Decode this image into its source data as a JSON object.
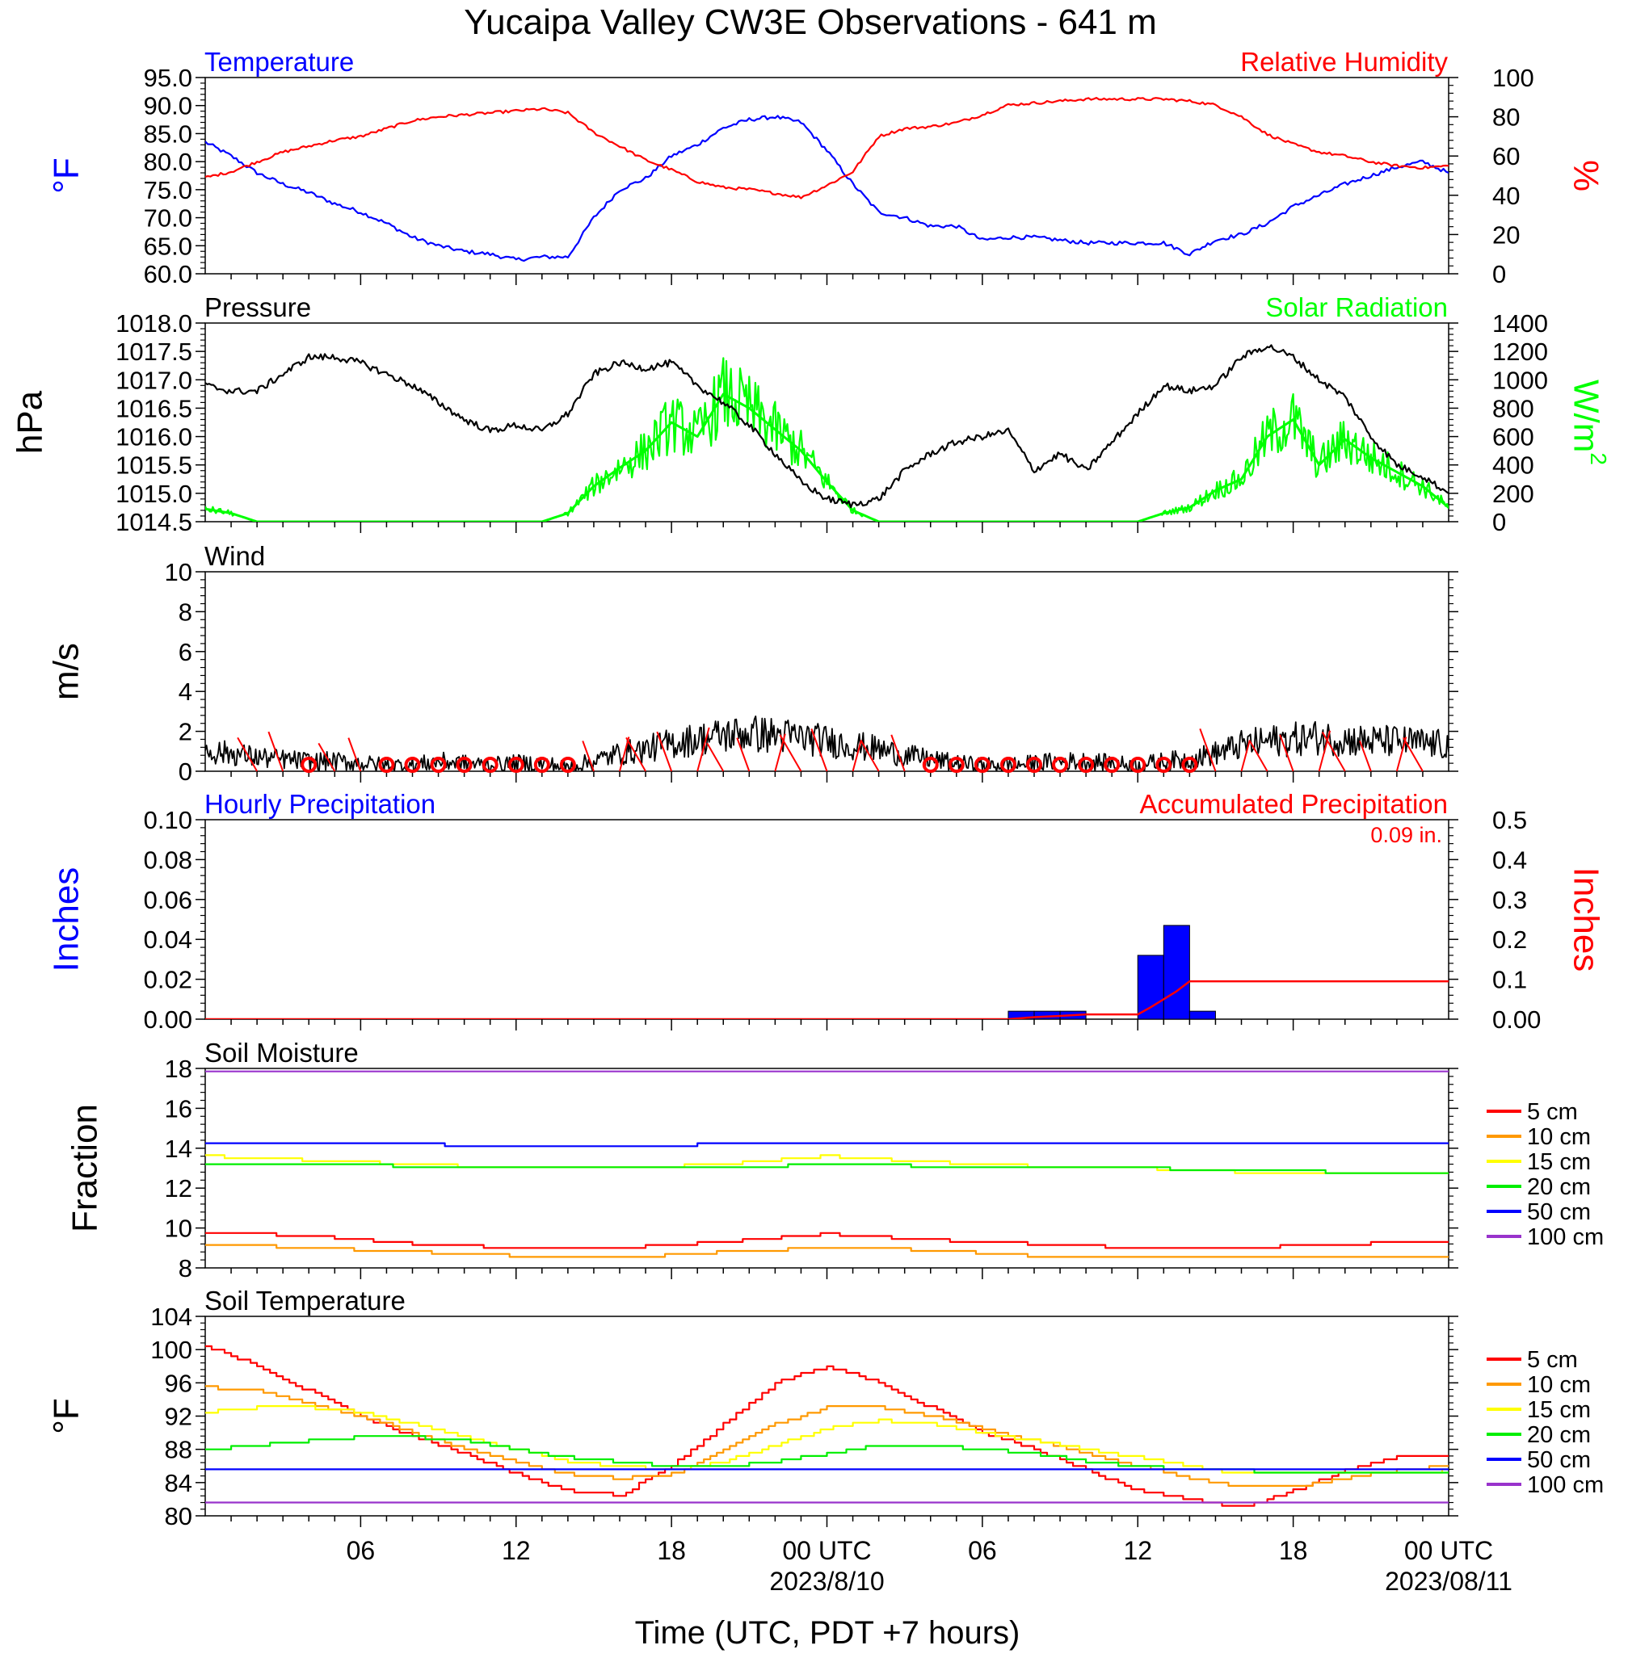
{
  "page_title": "Yucaipa Valley CW3E Observations - 641 m",
  "x_axis": {
    "title": "Time (UTC, PDT +7 hours)",
    "tick_labels": [
      "06",
      "12",
      "18",
      "00 UTC",
      "06",
      "12",
      "18",
      "00 UTC"
    ],
    "date_labels": [
      "2023/8/10",
      "2023/08/11"
    ]
  },
  "colors": {
    "temperature": "#0000ff",
    "humidity": "#ff0000",
    "pressure": "#000000",
    "solar": "#00ff00",
    "wind_barb": "#ff0000",
    "hourly_precip": "#0000ff",
    "accum_precip": "#ff0000",
    "depth_5cm": "#ff0000",
    "depth_10cm": "#ff9900",
    "depth_15cm": "#ffff00",
    "depth_20cm": "#00ee00",
    "depth_50cm": "#0000ff",
    "depth_100cm": "#9933cc"
  },
  "chart_data": [
    {
      "id": "temp-rh",
      "type": "line",
      "left_title": "Temperature",
      "right_title": "Relative Humidity",
      "ylabel_left": "°F",
      "ylabel_right": "%",
      "ylim_left": [
        60,
        95
      ],
      "ylim_right": [
        0,
        100
      ],
      "left_ticks": [
        "95.0",
        "90.0",
        "85.0",
        "80.0",
        "75.0",
        "70.0",
        "65.0",
        "60.0"
      ],
      "right_ticks": [
        "100",
        "80",
        "60",
        "40",
        "20",
        "0"
      ],
      "x_hours": [
        0,
        1,
        2,
        3,
        4,
        5,
        6,
        7,
        8,
        9,
        10,
        11,
        12,
        13,
        14,
        15,
        16,
        17,
        18,
        19,
        20,
        21,
        22,
        23,
        24,
        25,
        26,
        27,
        28,
        29,
        30,
        31,
        32,
        33,
        34,
        35,
        36,
        37,
        38,
        39,
        40,
        41,
        42,
        43,
        44,
        45,
        46,
        47,
        48
      ],
      "series": [
        {
          "name": "Temperature",
          "axis": "left",
          "values": [
            83.5,
            81,
            78,
            76,
            74.5,
            72.5,
            71,
            69,
            66.5,
            65,
            64,
            63.5,
            62.5,
            63,
            63,
            70,
            75,
            77,
            81,
            83,
            86,
            87.5,
            88,
            87,
            82,
            76,
            71,
            70,
            68.5,
            68.5,
            66,
            66.5,
            66.5,
            66,
            65.5,
            65.5,
            65.5,
            65.5,
            63.5,
            66,
            67,
            69,
            72,
            74,
            76,
            77.5,
            79,
            80,
            78
          ]
        },
        {
          "name": "Relative Humidity",
          "axis": "right",
          "values": [
            49,
            52,
            57,
            62,
            65,
            68,
            70,
            74,
            78,
            80,
            81,
            82,
            83,
            84,
            82,
            72,
            65,
            58,
            53,
            47,
            44,
            43,
            41,
            39,
            45,
            52,
            70,
            74,
            75,
            77,
            81,
            86,
            87,
            88,
            89,
            89,
            89,
            89,
            88,
            86,
            80,
            71,
            66,
            62,
            60,
            57,
            55,
            54,
            55
          ]
        }
      ]
    },
    {
      "id": "pressure-solar",
      "type": "line",
      "left_title": "Pressure",
      "right_title": "Solar Radiation",
      "ylabel_left": "hPa",
      "ylabel_right": "W/m",
      "ylabel_right_sup": "2",
      "ylim_left": [
        1014.5,
        1018
      ],
      "ylim_right": [
        0,
        1400
      ],
      "left_ticks": [
        "1018.0",
        "1017.5",
        "1017.0",
        "1016.5",
        "1016.0",
        "1015.5",
        "1015.0",
        "1014.5"
      ],
      "right_ticks": [
        "1400",
        "1200",
        "1000",
        "800",
        "600",
        "400",
        "200",
        "0"
      ],
      "x_hours": [
        0,
        1,
        2,
        3,
        4,
        5,
        6,
        7,
        8,
        9,
        10,
        11,
        12,
        13,
        14,
        15,
        16,
        17,
        18,
        19,
        20,
        21,
        22,
        23,
        24,
        25,
        26,
        27,
        28,
        29,
        30,
        31,
        32,
        33,
        34,
        35,
        36,
        37,
        38,
        39,
        40,
        41,
        42,
        43,
        44,
        45,
        46,
        47,
        48
      ],
      "series": [
        {
          "name": "Pressure",
          "axis": "left",
          "values": [
            1016.9,
            1016.8,
            1016.8,
            1017.1,
            1017.4,
            1017.4,
            1017.3,
            1017.1,
            1016.9,
            1016.6,
            1016.3,
            1016.1,
            1016.2,
            1016.1,
            1016.4,
            1017.1,
            1017.3,
            1017.2,
            1017.3,
            1016.9,
            1016.6,
            1016.2,
            1015.7,
            1015.2,
            1014.9,
            1014.8,
            1014.9,
            1015.4,
            1015.7,
            1015.9,
            1016.0,
            1016.1,
            1015.4,
            1015.7,
            1015.4,
            1015.9,
            1016.4,
            1016.9,
            1016.8,
            1016.9,
            1017.4,
            1017.6,
            1017.4,
            1017.0,
            1016.7,
            1016.0,
            1015.5,
            1015.3,
            1015.0
          ]
        },
        {
          "name": "Solar Radiation",
          "axis": "right",
          "values": [
            90,
            60,
            0,
            0,
            0,
            0,
            0,
            0,
            0,
            0,
            0,
            0,
            0,
            0,
            60,
            250,
            380,
            500,
            700,
            600,
            900,
            800,
            650,
            500,
            280,
            80,
            0,
            0,
            0,
            0,
            0,
            0,
            0,
            0,
            0,
            0,
            0,
            60,
            100,
            220,
            300,
            600,
            720,
            400,
            580,
            450,
            350,
            250,
            100
          ]
        }
      ]
    },
    {
      "id": "wind",
      "type": "line",
      "left_title": "Wind",
      "ylabel_left": "m/s",
      "ylim_left": [
        0,
        10
      ],
      "left_ticks": [
        "10",
        "8",
        "6",
        "4",
        "2",
        "0"
      ],
      "x_hours": [
        0,
        1,
        2,
        3,
        4,
        5,
        6,
        7,
        8,
        9,
        10,
        11,
        12,
        13,
        14,
        15,
        16,
        17,
        18,
        19,
        20,
        21,
        22,
        23,
        24,
        25,
        26,
        27,
        28,
        29,
        30,
        31,
        32,
        33,
        34,
        35,
        36,
        37,
        38,
        39,
        40,
        41,
        42,
        43,
        44,
        45,
        46,
        47,
        48
      ],
      "series": [
        {
          "name": "Wind Speed",
          "axis": "left",
          "values": [
            1.0,
            0.9,
            0.7,
            0.6,
            0.5,
            0.5,
            0.4,
            0.3,
            0.3,
            0.5,
            0.4,
            0.3,
            0.4,
            0.4,
            0.2,
            0.5,
            0.9,
            1.1,
            1.4,
            1.6,
            1.8,
            1.9,
            1.8,
            1.7,
            1.5,
            1.3,
            1.1,
            0.8,
            0.6,
            0.4,
            0.3,
            0.3,
            0.4,
            0.5,
            0.5,
            0.4,
            0.3,
            0.5,
            0.6,
            0.9,
            1.3,
            1.5,
            1.6,
            1.7,
            1.6,
            1.5,
            1.5,
            1.4,
            1.3
          ]
        }
      ],
      "barb_hours": [
        2,
        3,
        4,
        5,
        6,
        7,
        8,
        9,
        10,
        11,
        12,
        13,
        14,
        15,
        16,
        17,
        18,
        19,
        20,
        21,
        22,
        23,
        24,
        25,
        26,
        27,
        28,
        29,
        30,
        31,
        32,
        33,
        34,
        35,
        36,
        37,
        38,
        39,
        40,
        41,
        42,
        43,
        44,
        45,
        46,
        47
      ],
      "calm_hours": [
        4,
        7,
        8,
        9,
        10,
        11,
        12,
        13,
        14,
        28,
        29,
        30,
        31,
        32,
        33,
        34,
        35,
        36,
        37,
        38
      ]
    },
    {
      "id": "precip",
      "type": "bar",
      "left_title": "Hourly Precipitation",
      "right_title": "Accumulated Precipitation",
      "total_label": "0.09 in.",
      "ylabel_left": "Inches",
      "ylabel_right": "Inches",
      "ylim_left": [
        0,
        0.1
      ],
      "ylim_right": [
        0,
        0.5
      ],
      "left_ticks": [
        "0.10",
        "0.08",
        "0.06",
        "0.04",
        "0.02",
        "0.00"
      ],
      "right_ticks": [
        "0.5",
        "0.4",
        "0.3",
        "0.2",
        "0.1",
        "0.00"
      ],
      "hourly_bars": [
        {
          "start": 31,
          "end": 32,
          "value": 0.004
        },
        {
          "start": 32,
          "end": 33,
          "value": 0.004
        },
        {
          "start": 33,
          "end": 34,
          "value": 0.004
        },
        {
          "start": 36,
          "end": 37,
          "value": 0.032
        },
        {
          "start": 37,
          "end": 38,
          "value": 0.047
        },
        {
          "start": 38,
          "end": 39,
          "value": 0.004
        }
      ],
      "accum_x": [
        0,
        31,
        32,
        33,
        34,
        36,
        36.5,
        37,
        37.5,
        38,
        48
      ],
      "accum_values": [
        0,
        0,
        0.005,
        0.008,
        0.012,
        0.012,
        0.03,
        0.05,
        0.07,
        0.095,
        0.095
      ]
    },
    {
      "id": "soil-moisture",
      "type": "line",
      "left_title": "Soil Moisture",
      "ylabel_left": "Fraction",
      "ylim_left": [
        8,
        18
      ],
      "left_ticks": [
        "18",
        "16",
        "14",
        "12",
        "10",
        "8"
      ],
      "x_hours": [
        0,
        4,
        8,
        12,
        16,
        20,
        24,
        28,
        32,
        36,
        40,
        44,
        48
      ],
      "series": [
        {
          "name": "5 cm",
          "values": [
            9.8,
            9.6,
            9.2,
            9.0,
            9.0,
            9.3,
            9.7,
            9.4,
            9.2,
            9.0,
            9.0,
            9.2,
            9.3
          ]
        },
        {
          "name": "10 cm",
          "values": [
            9.2,
            9.0,
            8.8,
            8.6,
            8.5,
            8.8,
            9.0,
            8.9,
            8.6,
            8.5,
            8.5,
            8.5,
            8.6
          ]
        },
        {
          "name": "15 cm",
          "values": [
            13.6,
            13.4,
            13.2,
            13.0,
            13.0,
            13.2,
            13.6,
            13.3,
            13.1,
            13.0,
            12.8,
            12.7,
            12.8
          ]
        },
        {
          "name": "20 cm",
          "values": [
            13.2,
            13.2,
            13.1,
            13.1,
            13.0,
            13.0,
            13.2,
            13.1,
            13.1,
            13.0,
            12.9,
            12.8,
            12.8
          ]
        },
        {
          "name": "50 cm",
          "values": [
            14.2,
            14.2,
            14.2,
            14.1,
            14.1,
            14.2,
            14.2,
            14.2,
            14.2,
            14.2,
            14.2,
            14.2,
            14.2
          ]
        },
        {
          "name": "100 cm",
          "values": [
            17.9,
            17.9,
            17.9,
            17.9,
            17.9,
            17.9,
            17.9,
            17.9,
            17.9,
            17.9,
            17.9,
            17.9,
            17.9
          ]
        }
      ]
    },
    {
      "id": "soil-temp",
      "type": "line",
      "left_title": "Soil Temperature",
      "ylabel_left": "°F",
      "ylim_left": [
        80,
        104
      ],
      "left_ticks": [
        "104",
        "100",
        "96",
        "92",
        "88",
        "84",
        "80"
      ],
      "x_hours": [
        0,
        2,
        4,
        6,
        8,
        10,
        12,
        14,
        16,
        18,
        20,
        22,
        24,
        26,
        28,
        30,
        32,
        34,
        36,
        38,
        40,
        42,
        44,
        46,
        48
      ],
      "series": [
        {
          "name": "5 cm",
          "values": [
            100.5,
            98,
            95,
            92,
            89.5,
            87.5,
            85,
            83,
            82.5,
            86,
            91,
            96,
            98,
            96,
            93,
            90,
            88,
            85.5,
            83,
            82,
            81,
            83,
            85.5,
            87,
            87
          ]
        },
        {
          "name": "10 cm",
          "values": [
            95.5,
            95,
            93.5,
            92,
            90,
            88,
            86.5,
            85,
            84.5,
            85,
            88,
            91,
            93,
            93,
            92,
            90.5,
            89,
            87.5,
            86,
            84.5,
            83.5,
            83.5,
            84.5,
            85.5,
            86
          ]
        },
        {
          "name": "15 cm",
          "values": [
            92.5,
            93,
            93,
            92.5,
            91,
            89.5,
            88,
            86.5,
            86,
            85.5,
            86.5,
            88.5,
            90.5,
            91.5,
            91,
            90,
            89,
            88,
            87,
            86,
            85,
            85,
            85,
            85,
            85.5
          ]
        },
        {
          "name": "20 cm",
          "values": [
            88,
            88.5,
            89,
            89.5,
            89.5,
            89,
            88,
            87,
            86.5,
            86,
            86,
            86.5,
            87.5,
            88.5,
            88.5,
            88,
            87.5,
            86.5,
            86,
            85.5,
            85.5,
            85,
            85,
            85,
            85
          ]
        },
        {
          "name": "50 cm",
          "values": [
            85.8,
            85.8,
            85.8,
            85.8,
            85.8,
            85.8,
            85.8,
            85.8,
            85.8,
            85.8,
            85.8,
            85.8,
            85.8,
            85.8,
            85.8,
            85.8,
            85.8,
            85.8,
            85.8,
            85.8,
            85.8,
            85.8,
            85.8,
            85.8,
            85.8
          ]
        },
        {
          "name": "100 cm",
          "values": [
            81.5,
            81.5,
            81.5,
            81.5,
            81.5,
            81.5,
            81.5,
            81.5,
            81.5,
            81.5,
            81.5,
            81.5,
            81.5,
            81.5,
            81.5,
            81.5,
            81.5,
            81.5,
            81.5,
            81.5,
            81.5,
            81.5,
            81.5,
            81.5,
            81.5
          ]
        }
      ]
    }
  ]
}
